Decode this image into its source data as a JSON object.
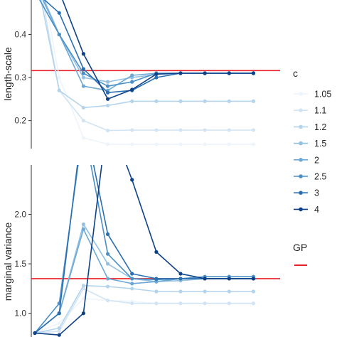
{
  "chart_data": [
    {
      "type": "line",
      "panel": "top",
      "ylabel": "length-scale",
      "xlabel": "",
      "ylim": [
        0.135,
        0.48
      ],
      "yticks": [
        0.2,
        0.3,
        0.4
      ],
      "ytick_labels": [
        "0.2",
        "0.3",
        "0.4"
      ],
      "x": [
        1,
        2,
        3,
        4,
        5,
        6,
        7,
        8,
        9,
        10
      ],
      "xlim": [
        0.85,
        11.1
      ],
      "gp_reference": 0.316,
      "series": [
        {
          "name": "1.05",
          "color": "#eef4fb",
          "values": [
            0.62,
            0.3,
            0.16,
            0.145,
            0.145,
            0.145,
            0.145,
            0.145,
            0.145,
            0.145
          ]
        },
        {
          "name": "1.1",
          "color": "#d2e4f3",
          "values": [
            0.58,
            0.27,
            0.2,
            0.177,
            0.178,
            0.178,
            0.178,
            0.178,
            0.178,
            0.178
          ]
        },
        {
          "name": "1.2",
          "color": "#b4d4ec",
          "values": [
            0.55,
            0.27,
            0.23,
            0.235,
            0.245,
            0.245,
            0.245,
            0.245,
            0.245,
            0.245
          ]
        },
        {
          "name": "1.5",
          "color": "#92c1e2",
          "values": [
            0.53,
            0.4,
            0.3,
            0.29,
            0.3,
            0.307,
            0.31,
            0.31,
            0.31,
            0.31
          ]
        },
        {
          "name": "2",
          "color": "#6ea8d6",
          "values": [
            0.52,
            0.4,
            0.28,
            0.27,
            0.305,
            0.31,
            0.31,
            0.31,
            0.31,
            0.31
          ]
        },
        {
          "name": "2.5",
          "color": "#4a8fc6",
          "values": [
            0.5,
            0.4,
            0.31,
            0.28,
            0.29,
            0.31,
            0.31,
            0.31,
            0.31,
            0.31
          ]
        },
        {
          "name": "3",
          "color": "#2a6fb2",
          "values": [
            0.5,
            0.45,
            0.32,
            0.265,
            0.27,
            0.3,
            0.31,
            0.31,
            0.31,
            0.31
          ]
        },
        {
          "name": "4",
          "color": "#0e4187",
          "values": [
            0.55,
            0.5,
            0.355,
            0.25,
            0.272,
            0.308,
            0.31,
            0.31,
            0.31,
            0.31
          ]
        }
      ],
      "legend": "right",
      "grid": false
    },
    {
      "type": "line",
      "panel": "bottom",
      "ylabel": "marginal variance",
      "xlabel": "",
      "ylim": [
        0.76,
        2.5
      ],
      "yticks": [
        1.0,
        1.5,
        2.0
      ],
      "ytick_labels": [
        "1.0",
        "1.5",
        "2.0"
      ],
      "x": [
        1,
        2,
        3,
        4,
        5,
        6,
        7,
        8,
        9,
        10
      ],
      "xlim": [
        0.85,
        11.1
      ],
      "gp_reference": 1.35,
      "series": [
        {
          "name": "1.05",
          "color": "#eef4fb",
          "values": [
            0.8,
            0.9,
            1.15,
            1.13,
            1.12,
            1.1,
            1.1,
            1.1,
            1.1,
            1.1
          ]
        },
        {
          "name": "1.1",
          "color": "#d2e4f3",
          "values": [
            0.8,
            0.82,
            1.25,
            1.13,
            1.1,
            1.1,
            1.1,
            1.1,
            1.1,
            1.1
          ]
        },
        {
          "name": "1.2",
          "color": "#b4d4ec",
          "values": [
            0.8,
            0.85,
            1.28,
            1.27,
            1.25,
            1.22,
            1.22,
            1.22,
            1.22,
            1.22
          ]
        },
        {
          "name": "1.5",
          "color": "#92c1e2",
          "values": [
            0.8,
            1.0,
            1.9,
            1.5,
            1.35,
            1.32,
            1.33,
            1.35,
            1.35,
            1.35
          ]
        },
        {
          "name": "2",
          "color": "#6ea8d6",
          "values": [
            0.8,
            1.0,
            1.85,
            1.35,
            1.3,
            1.32,
            1.35,
            1.35,
            1.35,
            1.35
          ]
        },
        {
          "name": "2.5",
          "color": "#4a8fc6",
          "values": [
            0.8,
            1.1,
            2.9,
            1.6,
            1.35,
            1.34,
            1.35,
            1.37,
            1.37,
            1.37
          ]
        },
        {
          "name": "3",
          "color": "#2a6fb2",
          "values": [
            0.8,
            1.0,
            3.0,
            1.8,
            1.4,
            1.35,
            1.35,
            1.35,
            1.35,
            1.35
          ]
        },
        {
          "name": "4",
          "color": "#0e4187",
          "values": [
            0.8,
            0.78,
            1.0,
            3.0,
            2.35,
            1.62,
            1.4,
            1.35,
            1.35,
            1.35
          ]
        }
      ],
      "legend": "right",
      "grid": false
    }
  ],
  "legend": {
    "title": "c",
    "entries": [
      "1.05",
      "1.1",
      "1.2",
      "1.5",
      "2",
      "2.5",
      "3",
      "4"
    ],
    "colors": [
      "#eef4fb",
      "#d2e4f3",
      "#b4d4ec",
      "#92c1e2",
      "#6ea8d6",
      "#4a8fc6",
      "#2a6fb2",
      "#0e4187"
    ],
    "gp_title": "GP",
    "gp_color": "#e8202a"
  }
}
